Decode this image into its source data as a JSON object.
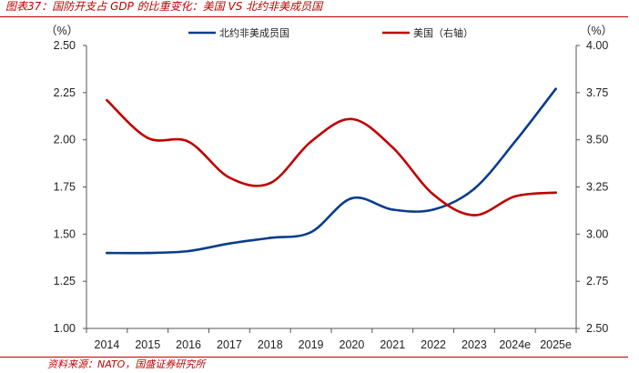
{
  "header": {
    "title": "图表37：国防开支占 GDP 的比重变化：美国 VS 北约非美成员国"
  },
  "footer": {
    "source": "资料来源：NATO，国盛证券研究所"
  },
  "chart_data": {
    "type": "line",
    "title": "图表37：国防开支占 GDP 的比重变化：美国 VS 北约非美成员国",
    "categories": [
      "2014",
      "2015",
      "2016",
      "2017",
      "2018",
      "2019",
      "2020",
      "2021",
      "2022",
      "2023",
      "2024e",
      "2025e"
    ],
    "left_axis": {
      "unit_label": "（%）",
      "min": 1.0,
      "max": 2.5,
      "ticks": [
        "1.00",
        "1.25",
        "1.50",
        "1.75",
        "2.00",
        "2.25",
        "2.50"
      ],
      "tick_values": [
        1.0,
        1.25,
        1.5,
        1.75,
        2.0,
        2.25,
        2.5
      ]
    },
    "right_axis": {
      "unit_label": "（%）",
      "min": 2.5,
      "max": 4.0,
      "ticks": [
        "2.50",
        "2.75",
        "3.00",
        "3.25",
        "3.50",
        "3.75",
        "4.00"
      ],
      "tick_values": [
        2.5,
        2.75,
        3.0,
        3.25,
        3.5,
        3.75,
        4.0
      ]
    },
    "series": [
      {
        "name": "北约非美成员国",
        "axis": "left",
        "color": "#0a3c8c",
        "values": [
          1.4,
          1.4,
          1.41,
          1.45,
          1.48,
          1.51,
          1.69,
          1.63,
          1.63,
          1.74,
          1.99,
          2.27
        ]
      },
      {
        "name": "美国（右轴）",
        "axis": "right",
        "color": "#c00000",
        "values": [
          3.71,
          3.51,
          3.49,
          3.3,
          3.27,
          3.49,
          3.61,
          3.46,
          3.21,
          3.1,
          3.2,
          3.22
        ]
      }
    ],
    "legend_position": "top-center",
    "grid": false
  }
}
